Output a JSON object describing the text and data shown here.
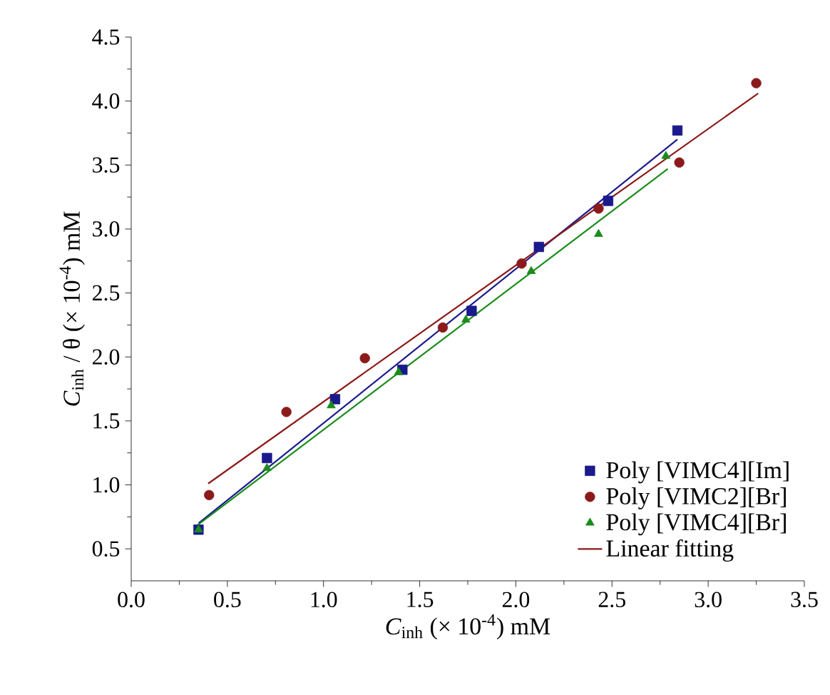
{
  "chart_data": {
    "type": "scatter",
    "xlabel": "*C*$_{inh}$ (× 10$^{-4}$) mM",
    "ylabel": "*C*$_{inh}$ / θ (× 10$^{-4}$) mM",
    "xlim": [
      0,
      3.5
    ],
    "ylim": [
      0.25,
      4.5
    ],
    "xticks": [
      {
        "value": 0,
        "label": "0.0"
      },
      0.5,
      {
        "value": 1,
        "label": "1.0"
      },
      1.5,
      {
        "value": 2,
        "label": "2.0"
      },
      2.5,
      {
        "value": 3,
        "label": "3.0"
      },
      3.5
    ],
    "yticks": [
      0.5,
      {
        "value": 1,
        "label": "1.0"
      },
      1.5,
      {
        "value": 2,
        "label": "2.0"
      },
      2.5,
      {
        "value": 3,
        "label": "3.0"
      },
      3.5,
      {
        "value": 4,
        "label": "4.0"
      },
      4.5
    ],
    "legend": "bottom right",
    "grid": false,
    "series": [
      {
        "name": "Poly [VIMC4][Im]",
        "color": "#1a1a8c",
        "marker": "square",
        "x": [
          0.35,
          0.706,
          1.06,
          1.41,
          1.77,
          2.12,
          2.48,
          2.84
        ],
        "values": [
          0.65,
          1.21,
          1.67,
          1.9,
          2.36,
          2.86,
          3.22,
          3.77
        ]
      },
      {
        "name": "Poly [VIMC2][Br]",
        "color": "#8b1a1a",
        "marker": "circle",
        "x": [
          0.405,
          0.807,
          1.215,
          1.62,
          2.03,
          2.43,
          2.85,
          3.25
        ],
        "values": [
          0.92,
          1.57,
          1.99,
          2.23,
          2.73,
          3.16,
          3.52,
          4.14
        ]
      },
      {
        "name": "Poly [VIMC4][Br]",
        "color": "#1a8c1a",
        "marker": "triangle",
        "x": [
          0.35,
          0.706,
          1.04,
          1.39,
          1.74,
          2.08,
          2.43,
          2.78
        ],
        "values": [
          0.65,
          1.13,
          1.62,
          1.88,
          2.29,
          2.67,
          2.96,
          3.57
        ]
      },
      {
        "type": "line",
        "color": "#1a1a8c",
        "marker": "none",
        "x": [
          0.35,
          2.84
        ],
        "values": [
          0.7,
          3.7
        ]
      },
      {
        "type": "line",
        "color": "#1a8c1a",
        "marker": "none",
        "x": [
          0.34,
          2.79
        ],
        "values": [
          0.68,
          3.47
        ]
      },
      {
        "type": "line",
        "name": "Linear fitting",
        "color": "#8b1a1a",
        "marker": "none",
        "x": [
          0.4,
          3.26
        ],
        "values": [
          1.01,
          4.06
        ]
      }
    ]
  }
}
